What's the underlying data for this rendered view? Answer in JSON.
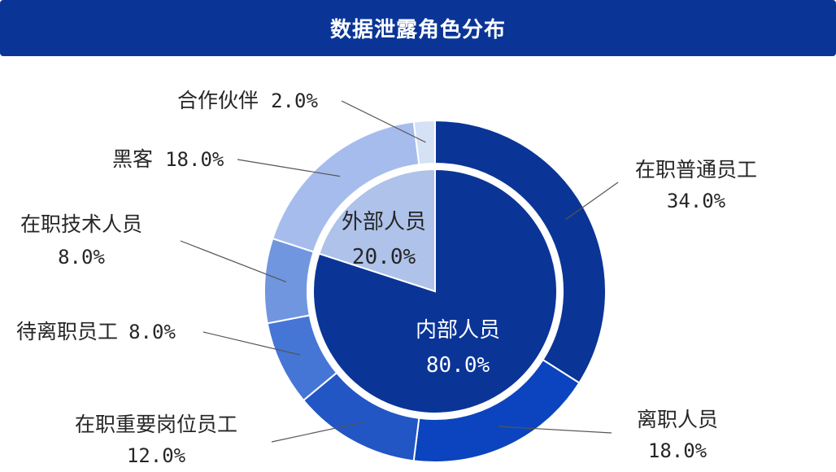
{
  "title": "数据泄露角色分布",
  "colors": {
    "title_bg": "#0a3597",
    "inner": [
      "#0a3597",
      "#aec2ea"
    ],
    "outer": [
      "#0a3597",
      "#0b44be",
      "#2156c4",
      "#4576d6",
      "#7196e0",
      "#a6bcec",
      "#d5e1f5"
    ]
  },
  "chart_data": {
    "type": "pie",
    "inner": {
      "labels": [
        "内部人员",
        "外部人员"
      ],
      "values": [
        80.0,
        20.0
      ],
      "value_labels": [
        "80.0%",
        "20.0%"
      ]
    },
    "outer": {
      "labels": [
        "在职普通员工",
        "离职人员",
        "在职重要岗位员工",
        "待离职员工",
        "在职技术人员",
        "黑客",
        "合作伙伴"
      ],
      "values": [
        34.0,
        18.0,
        12.0,
        8.0,
        8.0,
        18.0,
        2.0
      ],
      "value_labels": [
        "34.0%",
        "18.0%",
        "12.0%",
        "8.0%",
        "8.0%",
        "18.0%",
        "2.0%"
      ]
    }
  }
}
